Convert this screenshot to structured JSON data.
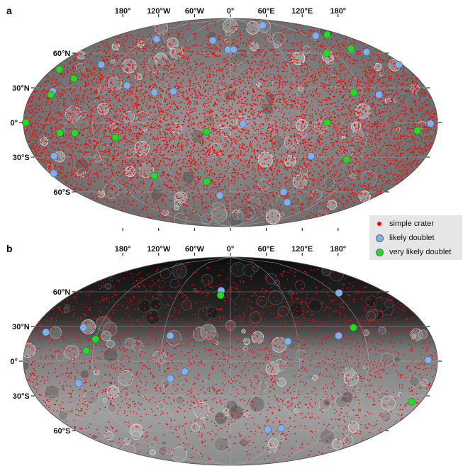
{
  "panels": [
    {
      "letter": "a",
      "lon_labels": [
        "180°",
        "120°W",
        "60°W",
        "0°",
        "60°E",
        "120°E",
        "180°"
      ],
      "lat_labels": [
        "60°N",
        "30°N",
        "0°",
        "30°S",
        "60°S"
      ],
      "likely_doublets": [
        [
          -107,
          72
        ],
        [
          -135,
          50
        ],
        [
          -96,
          32
        ],
        [
          -69,
          26
        ],
        [
          -25,
          71
        ],
        [
          -3,
          63
        ],
        [
          4,
          63
        ],
        [
          78,
          84
        ],
        [
          134,
          75
        ],
        [
          -52,
          27
        ],
        [
          -162,
          27
        ],
        [
          147,
          63
        ],
        [
          161,
          61
        ],
        [
          176,
          50
        ],
        [
          134,
          24
        ],
        [
          11,
          -1
        ],
        [
          174,
          -1
        ],
        [
          -162,
          -29
        ],
        [
          74,
          -29
        ],
        [
          62,
          -60
        ],
        [
          -13,
          -63
        ],
        [
          77,
          -69
        ],
        [
          -176,
          -44
        ]
      ],
      "very_likely_doublets": [
        [
          -173,
          46
        ],
        [
          -150,
          38
        ],
        [
          -162,
          24
        ],
        [
          157,
          76
        ],
        [
          149,
          64
        ],
        [
          112,
          60
        ],
        [
          -178,
          0
        ],
        [
          -149,
          -9
        ],
        [
          -136,
          -9
        ],
        [
          -101,
          -13
        ],
        [
          -21,
          -8
        ],
        [
          84,
          0
        ],
        [
          163,
          -7
        ],
        [
          108,
          -32
        ],
        [
          -77,
          -46
        ],
        [
          -25,
          -51
        ],
        [
          112,
          26
        ]
      ]
    },
    {
      "letter": "b",
      "lon_labels": [
        "180°",
        "120°W",
        "60°W",
        "0°",
        "60°E",
        "120°E",
        "180°"
      ],
      "lat_labels": [
        "30°N",
        "0°",
        "30°S",
        "60°S"
      ],
      "lat_label_top": "60°N",
      "likely_doublets": [
        [
          -11,
          61
        ],
        [
          125,
          59
        ],
        [
          -167,
          25
        ],
        [
          -135,
          29
        ],
        [
          -54,
          22
        ],
        [
          51,
          17
        ],
        [
          97,
          22
        ],
        [
          172,
          1
        ],
        [
          -40,
          -9
        ],
        [
          -53,
          -15
        ],
        [
          -135,
          -19
        ],
        [
          43,
          -59
        ],
        [
          58,
          -58
        ]
      ],
      "very_likely_doublets": [
        [
          -11,
          57
        ],
        [
          113,
          29
        ],
        [
          -120,
          19
        ],
        [
          -126,
          9
        ],
        [
          171,
          -35
        ]
      ]
    }
  ],
  "legend": {
    "items": [
      {
        "label": "simple crater",
        "color": "#ff0000"
      },
      {
        "label": "likely doublet",
        "color": "#7fb0f0"
      },
      {
        "label": "very likely doublet",
        "color": "#22dd22"
      }
    ]
  },
  "colors": {
    "crater": "#ff0000",
    "likely": "#7fb0f0",
    "very_likely": "#22dd22",
    "grid": "#bbbbbb"
  }
}
